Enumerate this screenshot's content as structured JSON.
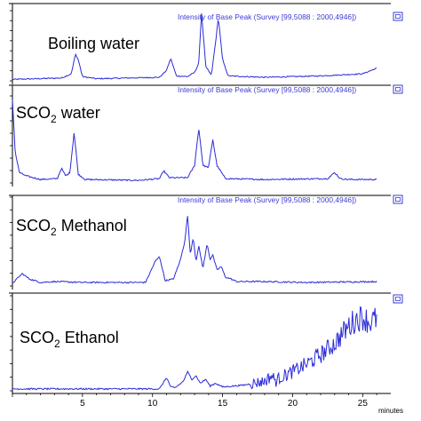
{
  "header_text": "Intensity of Base Peak (Survey [99,5088 : 2000,4946])",
  "x_axis": {
    "unit": "minutes",
    "ticks": [
      "5",
      "10",
      "15",
      "20",
      "25"
    ],
    "range": [
      0,
      26.5
    ]
  },
  "colors": {
    "trace": "#2a2ad8",
    "axis": "#000000",
    "header": "#3b3bd6"
  },
  "icons": [
    "expand-icon",
    "expand-icon",
    "expand-icon",
    "expand-icon"
  ],
  "chart_data": [
    {
      "type": "line",
      "title": "Boiling water",
      "label_main": "Boiling water",
      "label_sub": "",
      "label_tail": "",
      "header": "Intensity of Base Peak (Survey [99,5088 : 2000,4946])",
      "xlim": [
        0,
        26.5
      ],
      "ylim": [
        0,
        1.0
      ],
      "x": [
        0.0,
        3.5,
        4.2,
        4.5,
        4.7,
        5.0,
        6.0,
        10.5,
        11.0,
        11.3,
        11.7,
        12.5,
        13.0,
        13.3,
        13.5,
        13.8,
        14.2,
        14.5,
        14.7,
        15.0,
        15.4,
        18.0,
        22.0,
        25.0,
        26.0
      ],
      "y": [
        0.02,
        0.04,
        0.1,
        0.38,
        0.3,
        0.06,
        0.03,
        0.05,
        0.15,
        0.32,
        0.07,
        0.06,
        0.12,
        0.25,
        0.98,
        0.2,
        0.08,
        0.55,
        0.9,
        0.3,
        0.07,
        0.05,
        0.07,
        0.1,
        0.18
      ]
    },
    {
      "type": "line",
      "title": "SCO2 water",
      "label_main": "SCO",
      "label_sub": "2",
      "label_tail": " water",
      "header": "Intensity of Base Peak (Survey [99,5088 : 2000,4946])",
      "xlim": [
        0,
        26.5
      ],
      "ylim": [
        0,
        1.0
      ],
      "x": [
        0.0,
        0.2,
        0.5,
        1.0,
        2.0,
        3.2,
        3.5,
        3.8,
        4.1,
        4.4,
        4.7,
        5.2,
        9.0,
        10.5,
        10.8,
        11.2,
        12.5,
        13.0,
        13.3,
        13.6,
        14.0,
        14.3,
        14.6,
        15.2,
        18.0,
        22.5,
        23.0,
        23.4,
        24.0,
        26.0
      ],
      "y": [
        0.95,
        0.35,
        0.12,
        0.08,
        0.04,
        0.05,
        0.17,
        0.08,
        0.12,
        0.58,
        0.1,
        0.04,
        0.03,
        0.05,
        0.14,
        0.06,
        0.06,
        0.2,
        0.63,
        0.2,
        0.18,
        0.5,
        0.2,
        0.05,
        0.04,
        0.05,
        0.12,
        0.05,
        0.04,
        0.04
      ]
    },
    {
      "type": "line",
      "title": "SCO2 Methanol",
      "label_main": "SCO",
      "label_sub": "2",
      "label_tail": " Methanol",
      "header": "Intensity of Base Peak (Survey [99,5088 : 2000,4946])",
      "xlim": [
        0,
        26.5
      ],
      "ylim": [
        0,
        1.0
      ],
      "x": [
        0.0,
        0.7,
        1.2,
        2.0,
        3.0,
        5.0,
        9.5,
        10.2,
        10.5,
        10.9,
        11.5,
        12.0,
        12.3,
        12.5,
        12.7,
        12.9,
        13.1,
        13.3,
        13.6,
        13.9,
        14.1,
        14.3,
        14.6,
        14.9,
        15.2,
        15.6,
        16.0,
        18.0,
        21.0,
        26.0
      ],
      "y": [
        0.03,
        0.14,
        0.08,
        0.04,
        0.05,
        0.04,
        0.04,
        0.28,
        0.33,
        0.06,
        0.08,
        0.3,
        0.5,
        0.8,
        0.35,
        0.55,
        0.28,
        0.45,
        0.2,
        0.48,
        0.3,
        0.35,
        0.18,
        0.22,
        0.1,
        0.08,
        0.05,
        0.05,
        0.04,
        0.05
      ]
    },
    {
      "type": "line",
      "title": "SCO2 Ethanol",
      "label_main": "SCO",
      "label_sub": "2",
      "label_tail": " Ethanol",
      "header": "",
      "xlim": [
        0,
        26.5
      ],
      "ylim": [
        0,
        1.0
      ],
      "x": [
        0.0,
        5.0,
        10.5,
        11.0,
        11.3,
        11.6,
        12.2,
        12.5,
        12.8,
        13.1,
        13.4,
        13.8,
        14.1,
        14.5,
        15.0,
        16.5,
        18.0,
        18.5,
        18.8,
        19.1,
        20.0,
        21.0,
        22.0,
        23.0,
        24.0,
        24.5,
        25.0,
        25.5,
        26.0
      ],
      "y": [
        0.02,
        0.02,
        0.02,
        0.14,
        0.04,
        0.03,
        0.1,
        0.2,
        0.12,
        0.16,
        0.08,
        0.12,
        0.05,
        0.08,
        0.04,
        0.06,
        0.1,
        0.16,
        0.1,
        0.14,
        0.2,
        0.28,
        0.38,
        0.5,
        0.68,
        0.75,
        0.78,
        0.72,
        0.76
      ]
    }
  ]
}
